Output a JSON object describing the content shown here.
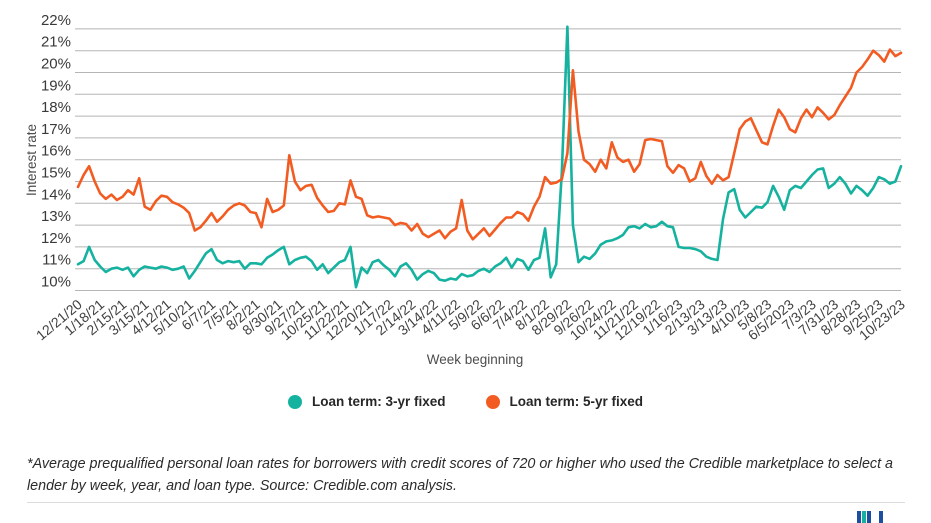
{
  "chart_data": {
    "type": "line",
    "title": "",
    "xlabel": "Week beginning",
    "ylabel": "Interest rate",
    "ylim": [
      10,
      22
    ],
    "grid": "horizontal",
    "grid_color": "#b5b5b5",
    "legend_position": "bottom",
    "weeks_total": 149,
    "x_tick_step_weeks": 4,
    "y_tick_labels": [
      "22%",
      "21%",
      "20%",
      "19%",
      "18%",
      "17%",
      "16%",
      "15%",
      "14%",
      "13%",
      "12%",
      "11%",
      "10%"
    ],
    "x_tick_labels": [
      "12/21/20",
      "1/18/21",
      "2/15/21",
      "3/15/21",
      "4/12/21",
      "5/10/21",
      "6/7/21",
      "7/5/21",
      "8/2/21",
      "8/30/21",
      "9/27/21",
      "10/25/21",
      "11/22/21",
      "12/20/21",
      "1/17/22",
      "2/14/22",
      "3/14/22",
      "4/11/22",
      "5/9/22",
      "6/6/22",
      "7/4/22",
      "8/1/22",
      "8/29/22",
      "9/26/22",
      "10/24/22",
      "11/21/22",
      "12/19/22",
      "1/16/23",
      "2/13/23",
      "3/13/23",
      "4/10/23",
      "5/8/23",
      "6/5/2023",
      "7/3/23",
      "7/31/23",
      "8/28/23",
      "9/25/23",
      "10/23/23"
    ],
    "series": [
      {
        "name": "Loan term: 3-yr fixed",
        "color": "#15b2a0",
        "values": [
          11.2,
          11.35,
          12.0,
          11.4,
          11.1,
          10.85,
          11.0,
          11.05,
          10.95,
          11.05,
          10.65,
          10.95,
          11.1,
          11.05,
          11.0,
          11.1,
          11.05,
          10.95,
          11.0,
          11.1,
          10.55,
          10.9,
          11.3,
          11.7,
          11.9,
          11.4,
          11.25,
          11.35,
          11.3,
          11.35,
          11.0,
          11.25,
          11.25,
          11.2,
          11.5,
          11.65,
          11.85,
          12.0,
          11.2,
          11.4,
          11.5,
          11.55,
          11.35,
          10.95,
          11.2,
          10.8,
          11.05,
          11.3,
          11.4,
          12.0,
          10.15,
          11.05,
          10.8,
          11.3,
          11.4,
          11.15,
          10.95,
          10.65,
          11.1,
          11.25,
          10.95,
          10.5,
          10.75,
          10.9,
          10.8,
          10.5,
          10.45,
          10.55,
          10.5,
          10.75,
          10.65,
          10.7,
          10.9,
          11.0,
          10.85,
          11.1,
          11.25,
          11.5,
          11.05,
          11.45,
          11.35,
          10.95,
          11.4,
          11.5,
          12.85,
          10.6,
          11.2,
          15.4,
          22.1,
          13.0,
          11.3,
          11.55,
          11.45,
          11.7,
          12.1,
          12.25,
          12.3,
          12.4,
          12.55,
          12.9,
          12.95,
          12.85,
          13.05,
          12.9,
          12.95,
          13.15,
          12.95,
          12.9,
          12.0,
          11.95,
          11.95,
          11.9,
          11.8,
          11.55,
          11.45,
          11.4,
          13.3,
          14.5,
          14.65,
          13.7,
          13.35,
          13.6,
          13.85,
          13.8,
          14.05,
          14.8,
          14.3,
          13.7,
          14.6,
          14.8,
          14.7,
          15.0,
          15.3,
          15.55,
          15.6,
          14.7,
          14.9,
          15.2,
          14.9,
          14.45,
          14.8,
          14.6,
          14.35,
          14.7,
          15.2,
          15.1,
          14.9,
          15.0,
          15.7
        ]
      },
      {
        "name": "Loan term: 5-yr fixed",
        "color": "#f25c22",
        "values": [
          14.75,
          15.3,
          15.7,
          15.0,
          14.45,
          14.2,
          14.4,
          14.15,
          14.3,
          14.6,
          14.4,
          15.15,
          13.85,
          13.7,
          14.1,
          14.35,
          14.3,
          14.05,
          13.95,
          13.8,
          13.55,
          12.75,
          12.9,
          13.2,
          13.55,
          13.15,
          13.4,
          13.7,
          13.9,
          14.0,
          13.9,
          13.6,
          13.55,
          12.9,
          14.2,
          13.6,
          13.7,
          13.9,
          16.2,
          15.0,
          14.6,
          14.8,
          14.85,
          14.25,
          13.9,
          13.6,
          13.65,
          14.0,
          13.95,
          15.05,
          14.3,
          14.2,
          13.45,
          13.35,
          13.4,
          13.35,
          13.3,
          13.0,
          13.1,
          13.05,
          12.75,
          13.05,
          12.6,
          12.45,
          12.6,
          12.75,
          12.4,
          12.7,
          12.85,
          14.15,
          12.75,
          12.35,
          12.6,
          12.85,
          12.5,
          12.8,
          13.1,
          13.35,
          13.35,
          13.6,
          13.5,
          13.2,
          13.85,
          14.3,
          15.2,
          14.9,
          14.95,
          15.1,
          16.3,
          20.1,
          17.3,
          16.0,
          15.8,
          15.45,
          16.0,
          15.6,
          16.8,
          16.1,
          15.9,
          16.0,
          15.45,
          15.8,
          16.9,
          16.95,
          16.9,
          16.85,
          15.7,
          15.4,
          15.75,
          15.6,
          15.0,
          15.15,
          15.9,
          15.25,
          14.9,
          15.3,
          15.05,
          15.2,
          16.3,
          17.4,
          17.75,
          17.9,
          17.35,
          16.8,
          16.7,
          17.55,
          18.3,
          17.95,
          17.4,
          17.25,
          17.9,
          18.3,
          17.95,
          18.4,
          18.15,
          17.85,
          18.05,
          18.5,
          18.9,
          19.3,
          20.0,
          20.25,
          20.6,
          21.0,
          20.8,
          20.5,
          21.05,
          20.75,
          20.9
        ]
      }
    ]
  },
  "footnote": "*Average prequalified personal loan rates for borrowers with credit scores of 720 or higher who used the Credible marketplace to select a lender by week, year, and loan type. Source: Credible.com analysis.",
  "logo": {
    "bars": [
      {
        "x": 0,
        "color": "#1d4fa1"
      },
      {
        "x": 5,
        "color": "#17b0a0"
      },
      {
        "x": 10,
        "color": "#1d4fa1"
      },
      {
        "x": 22,
        "color": "#1d4fa1"
      }
    ]
  }
}
